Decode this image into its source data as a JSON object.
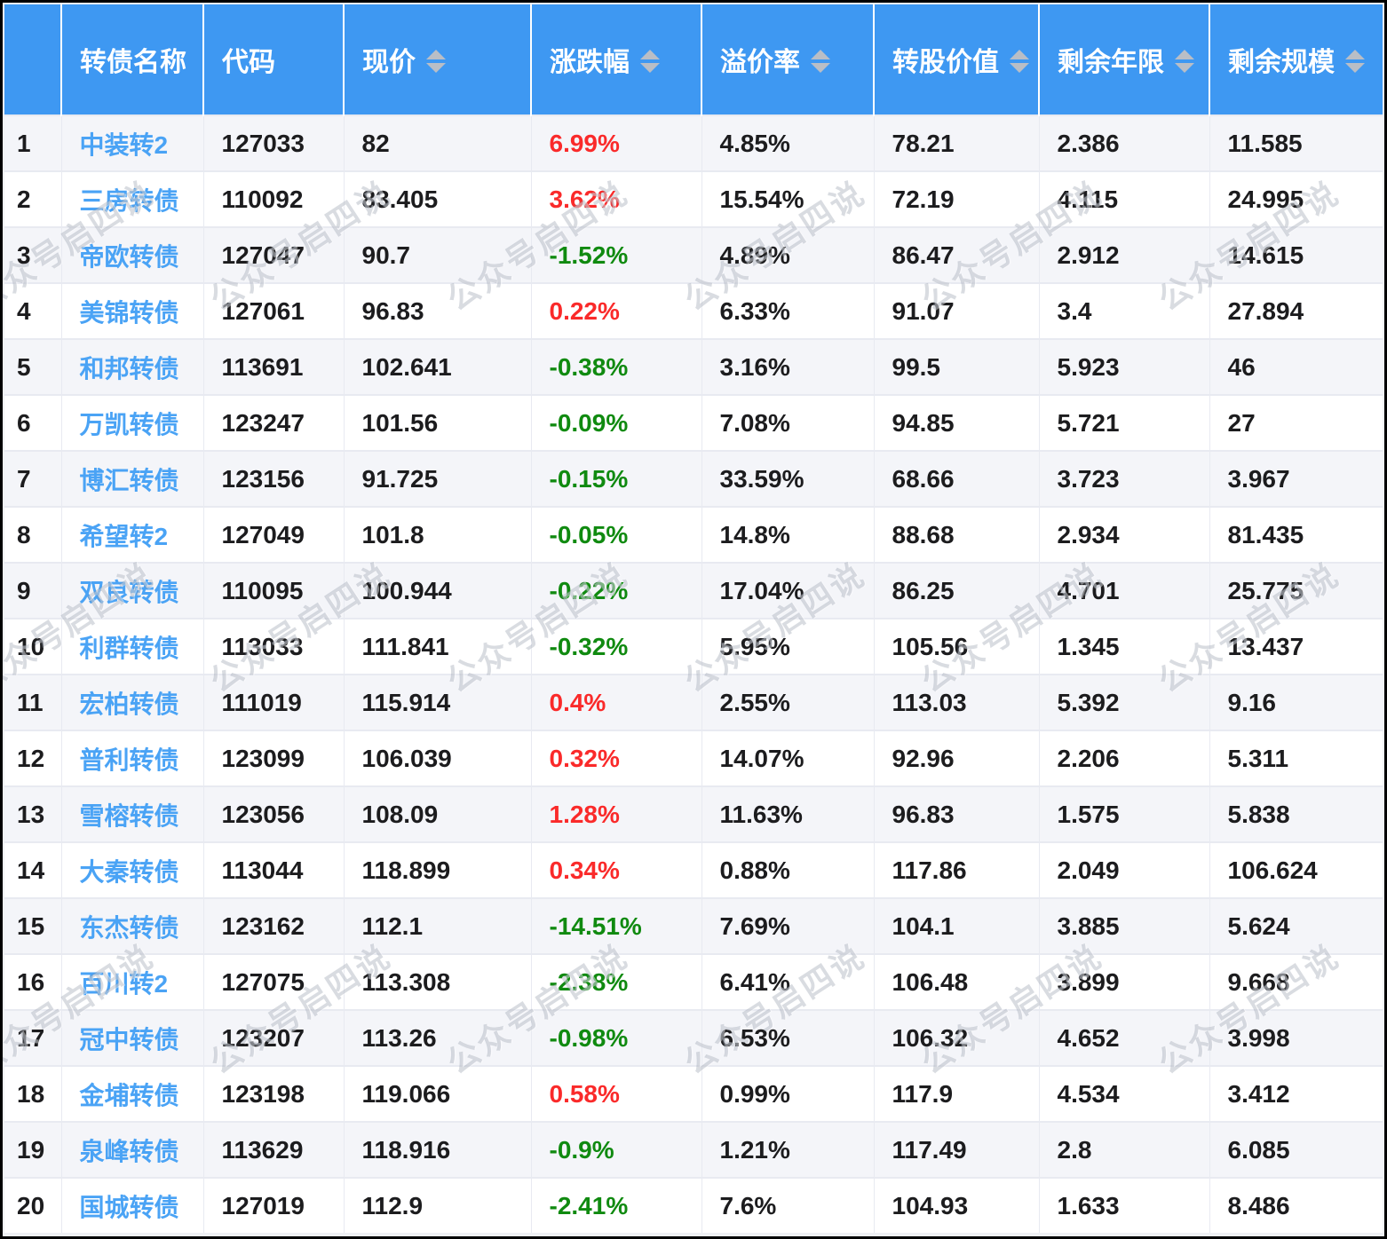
{
  "watermark": {
    "text": "公众号启四说"
  },
  "colors": {
    "header_bg": "#3e98f2",
    "link_blue": "#4aa3f5",
    "up_red": "#fa2a2a",
    "down_green": "#108a10",
    "row_alt_bg": "#f4f5f9",
    "grid_line": "#e8eaf1",
    "sort_icon": "#b9bec6",
    "frame_border": "#000000"
  },
  "table": {
    "columns": [
      {
        "key": "index",
        "label": "",
        "sortable": false
      },
      {
        "key": "name",
        "label": "转债名称",
        "sortable": false
      },
      {
        "key": "code",
        "label": "代码",
        "sortable": false
      },
      {
        "key": "price",
        "label": "现价",
        "sortable": true
      },
      {
        "key": "change",
        "label": "涨跌幅",
        "sortable": true
      },
      {
        "key": "premium",
        "label": "溢价率",
        "sortable": true
      },
      {
        "key": "conv_value",
        "label": "转股价值",
        "sortable": true
      },
      {
        "key": "years_left",
        "label": "剩余年限",
        "sortable": true
      },
      {
        "key": "size_left",
        "label": "剩余规模",
        "sortable": true
      }
    ],
    "rows": [
      {
        "index": "1",
        "name": "中装转2",
        "code": "127033",
        "price": "82",
        "change": "6.99%",
        "direction": "up",
        "premium": "4.85%",
        "conv_value": "78.21",
        "years_left": "2.386",
        "size_left": "11.585"
      },
      {
        "index": "2",
        "name": "三房转债",
        "code": "110092",
        "price": "83.405",
        "change": "3.62%",
        "direction": "up",
        "premium": "15.54%",
        "conv_value": "72.19",
        "years_left": "4.115",
        "size_left": "24.995"
      },
      {
        "index": "3",
        "name": "帝欧转债",
        "code": "127047",
        "price": "90.7",
        "change": "-1.52%",
        "direction": "down",
        "premium": "4.89%",
        "conv_value": "86.47",
        "years_left": "2.912",
        "size_left": "14.615"
      },
      {
        "index": "4",
        "name": "美锦转债",
        "code": "127061",
        "price": "96.83",
        "change": "0.22%",
        "direction": "up",
        "premium": "6.33%",
        "conv_value": "91.07",
        "years_left": "3.4",
        "size_left": "27.894"
      },
      {
        "index": "5",
        "name": "和邦转债",
        "code": "113691",
        "price": "102.641",
        "change": "-0.38%",
        "direction": "down",
        "premium": "3.16%",
        "conv_value": "99.5",
        "years_left": "5.923",
        "size_left": "46"
      },
      {
        "index": "6",
        "name": "万凯转债",
        "code": "123247",
        "price": "101.56",
        "change": "-0.09%",
        "direction": "down",
        "premium": "7.08%",
        "conv_value": "94.85",
        "years_left": "5.721",
        "size_left": "27"
      },
      {
        "index": "7",
        "name": "博汇转债",
        "code": "123156",
        "price": "91.725",
        "change": "-0.15%",
        "direction": "down",
        "premium": "33.59%",
        "conv_value": "68.66",
        "years_left": "3.723",
        "size_left": "3.967"
      },
      {
        "index": "8",
        "name": "希望转2",
        "code": "127049",
        "price": "101.8",
        "change": "-0.05%",
        "direction": "down",
        "premium": "14.8%",
        "conv_value": "88.68",
        "years_left": "2.934",
        "size_left": "81.435"
      },
      {
        "index": "9",
        "name": "双良转债",
        "code": "110095",
        "price": "100.944",
        "change": "-0.22%",
        "direction": "down",
        "premium": "17.04%",
        "conv_value": "86.25",
        "years_left": "4.701",
        "size_left": "25.775"
      },
      {
        "index": "10",
        "name": "利群转债",
        "code": "113033",
        "price": "111.841",
        "change": "-0.32%",
        "direction": "down",
        "premium": "5.95%",
        "conv_value": "105.56",
        "years_left": "1.345",
        "size_left": "13.437"
      },
      {
        "index": "11",
        "name": "宏柏转债",
        "code": "111019",
        "price": "115.914",
        "change": "0.4%",
        "direction": "up",
        "premium": "2.55%",
        "conv_value": "113.03",
        "years_left": "5.392",
        "size_left": "9.16"
      },
      {
        "index": "12",
        "name": "普利转债",
        "code": "123099",
        "price": "106.039",
        "change": "0.32%",
        "direction": "up",
        "premium": "14.07%",
        "conv_value": "92.96",
        "years_left": "2.206",
        "size_left": "5.311"
      },
      {
        "index": "13",
        "name": "雪榕转债",
        "code": "123056",
        "price": "108.09",
        "change": "1.28%",
        "direction": "up",
        "premium": "11.63%",
        "conv_value": "96.83",
        "years_left": "1.575",
        "size_left": "5.838"
      },
      {
        "index": "14",
        "name": "大秦转债",
        "code": "113044",
        "price": "118.899",
        "change": "0.34%",
        "direction": "up",
        "premium": "0.88%",
        "conv_value": "117.86",
        "years_left": "2.049",
        "size_left": "106.624"
      },
      {
        "index": "15",
        "name": "东杰转债",
        "code": "123162",
        "price": "112.1",
        "change": "-14.51%",
        "direction": "down",
        "premium": "7.69%",
        "conv_value": "104.1",
        "years_left": "3.885",
        "size_left": "5.624"
      },
      {
        "index": "16",
        "name": "百川转2",
        "code": "127075",
        "price": "113.308",
        "change": "-2.38%",
        "direction": "down",
        "premium": "6.41%",
        "conv_value": "106.48",
        "years_left": "3.899",
        "size_left": "9.668"
      },
      {
        "index": "17",
        "name": "冠中转债",
        "code": "123207",
        "price": "113.26",
        "change": "-0.98%",
        "direction": "down",
        "premium": "6.53%",
        "conv_value": "106.32",
        "years_left": "4.652",
        "size_left": "3.998"
      },
      {
        "index": "18",
        "name": "金埔转债",
        "code": "123198",
        "price": "119.066",
        "change": "0.58%",
        "direction": "up",
        "premium": "0.99%",
        "conv_value": "117.9",
        "years_left": "4.534",
        "size_left": "3.412"
      },
      {
        "index": "19",
        "name": "泉峰转债",
        "code": "113629",
        "price": "118.916",
        "change": "-0.9%",
        "direction": "down",
        "premium": "1.21%",
        "conv_value": "117.49",
        "years_left": "2.8",
        "size_left": "6.085"
      },
      {
        "index": "20",
        "name": "国城转债",
        "code": "127019",
        "price": "112.9",
        "change": "-2.41%",
        "direction": "down",
        "premium": "7.6%",
        "conv_value": "104.93",
        "years_left": "1.633",
        "size_left": "8.486"
      }
    ]
  }
}
